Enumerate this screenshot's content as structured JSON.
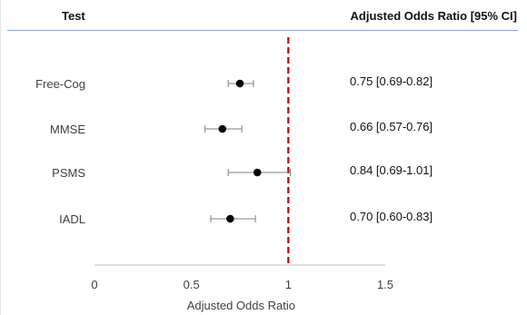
{
  "header": {
    "left_title": "Test",
    "right_title": "Adjusted Odds Ratio [95% CI]"
  },
  "chart_data": {
    "type": "scatter",
    "subtype": "forest-plot",
    "categories": [
      "Free-Cog",
      "MMSE",
      "PSMS",
      "IADL"
    ],
    "points": [
      {
        "label": "Free-Cog",
        "or": 0.75,
        "ci_low": 0.69,
        "ci_high": 0.82,
        "text": "0.75 [0.69-0.82]"
      },
      {
        "label": "MMSE",
        "or": 0.66,
        "ci_low": 0.57,
        "ci_high": 0.76,
        "text": "0.66 [0.57-0.76]"
      },
      {
        "label": "PSMS",
        "or": 0.84,
        "ci_low": 0.69,
        "ci_high": 1.01,
        "text": "0.84 [0.69-1.01]"
      },
      {
        "label": "IADL",
        "or": 0.7,
        "ci_low": 0.6,
        "ci_high": 0.83,
        "text": "0.70 [0.60-0.83]"
      }
    ],
    "xlabel": "Adjusted Odds Ratio",
    "xlim": [
      0,
      1.5
    ],
    "xticks": [
      0,
      0.5,
      1,
      1.5
    ],
    "xtick_labels": [
      "0",
      "0.5",
      "1",
      "1.5"
    ],
    "reference_line": 1,
    "grid": false,
    "colors": {
      "marker": "#000000",
      "ci_line": "#7f7f7f",
      "reference_line": "#c00000",
      "header_rule": "#8eaadb",
      "axis": "#bfbfbf",
      "text": "#111111",
      "muted_text": "#404040"
    }
  }
}
